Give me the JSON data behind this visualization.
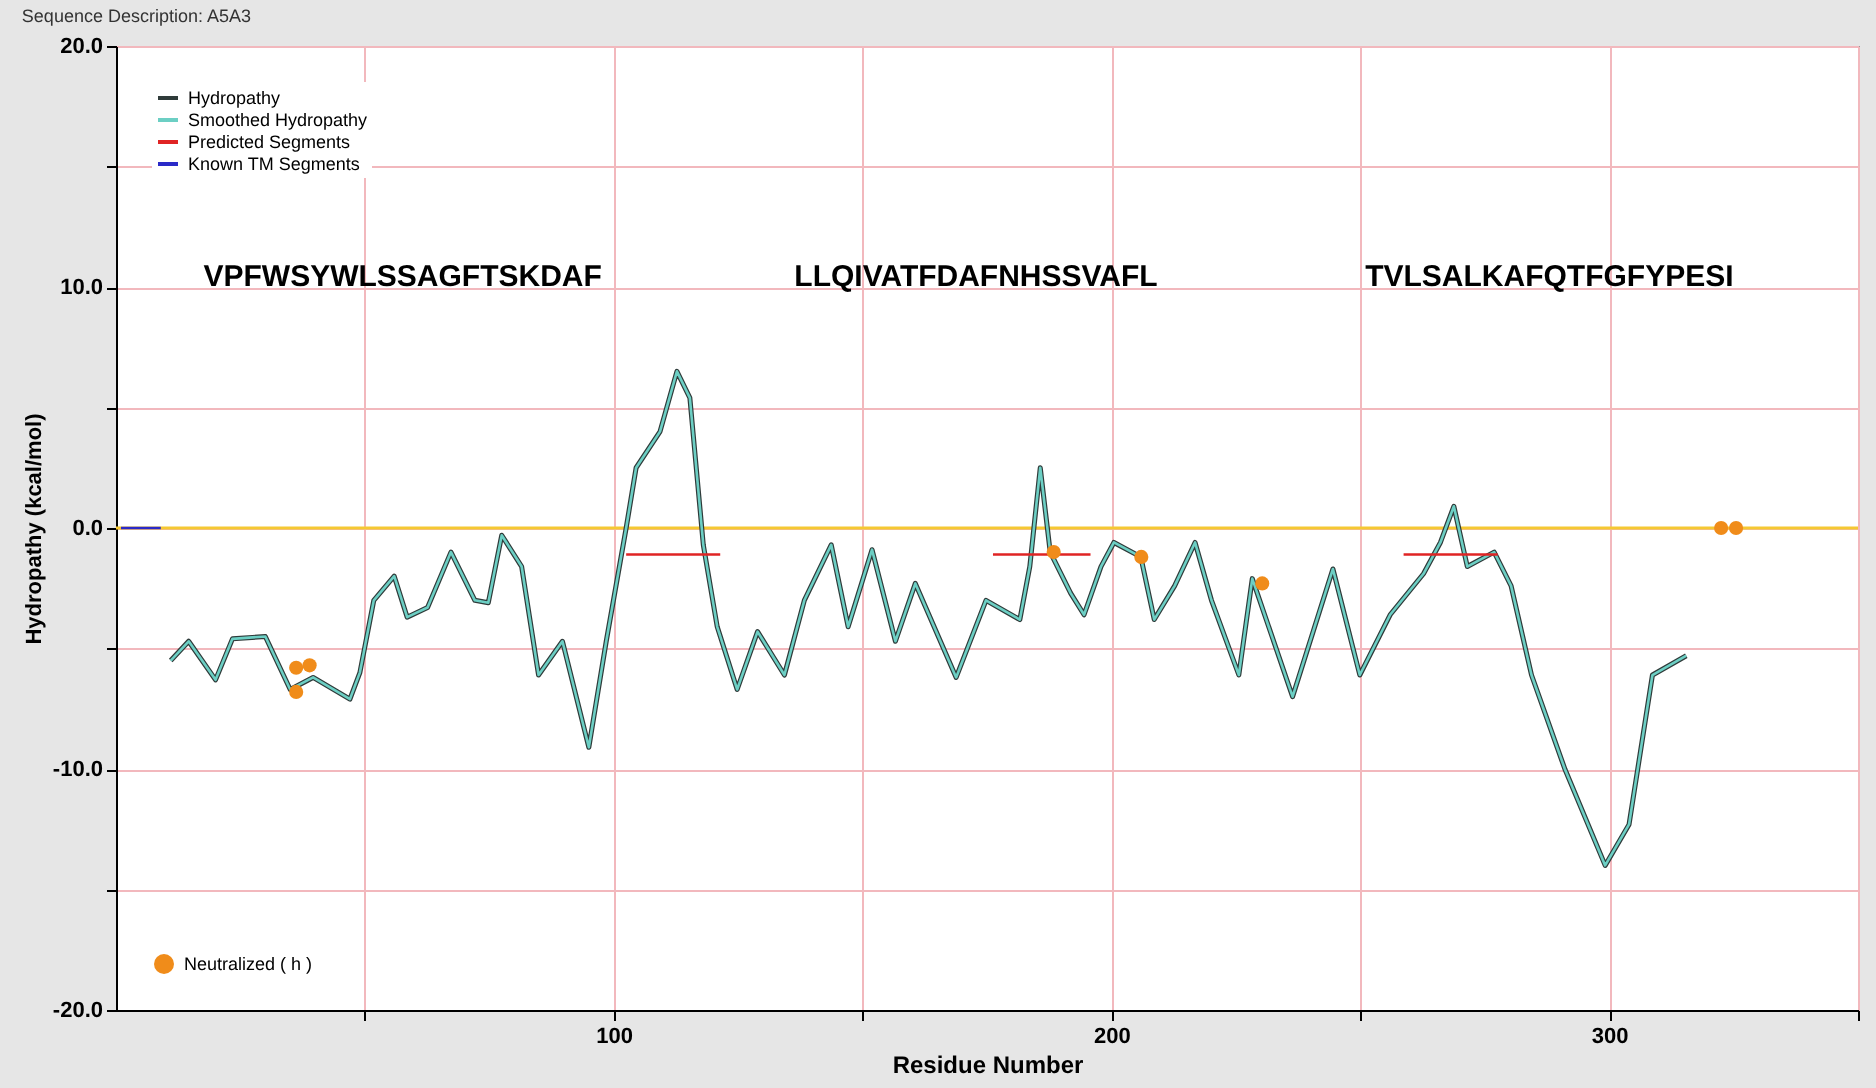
{
  "chart_data": {
    "type": "line",
    "title": "Sequence Description: A5A3",
    "xlabel": "Residue Number",
    "ylabel": "Hydropathy (kcal/mol)",
    "xlim": [
      0,
      350
    ],
    "ylim": [
      -20,
      20
    ],
    "xticks": [
      {
        "value": 50,
        "label": null
      },
      100,
      {
        "value": 150,
        "label": null
      },
      200,
      {
        "value": 250,
        "label": null
      },
      300,
      {
        "value": 350,
        "label": null
      }
    ],
    "yticks": [
      {
        "value": -20,
        "label": "-20.0"
      },
      {
        "value": -15,
        "label": null
      },
      {
        "value": -10,
        "label": "-10.0"
      },
      {
        "value": -5,
        "label": null
      },
      {
        "value": 0,
        "label": "0.0"
      },
      {
        "value": 5,
        "label": null
      },
      {
        "value": 10,
        "label": "10.0"
      },
      {
        "value": 15,
        "label": null
      },
      {
        "value": 20,
        "label": "20.0"
      }
    ],
    "grid": true,
    "legend": "left",
    "line_style": "solid",
    "marker": "none",
    "x": [
      11,
      14.6,
      20,
      23.4,
      30,
      35,
      39.6,
      47,
      49,
      51.8,
      55.9,
      58.5,
      62.6,
      67.3,
      72.1,
      74.8,
      77.5,
      81.5,
      84.9,
      89.7,
      95,
      98.5,
      102.5,
      104.5,
      109.3,
      112.7,
      115.3,
      118,
      120.8,
      124.8,
      128.9,
      134.3,
      138.3,
      143.7,
      147.1,
      151.9,
      156.6,
      160.6,
      168.8,
      174.8,
      181.6,
      183.6,
      185.7,
      187.7,
      191.8,
      194.5,
      197.9,
      200.5,
      205.9,
      208.6,
      212.7,
      216.8,
      220.1,
      225.6,
      228.3,
      236.4,
      244.5,
      249.9,
      256,
      262.7,
      266.1,
      268.8,
      271.5,
      276.9,
      280.3,
      284.4,
      291.1,
      299.2,
      304,
      308.7,
      315.5
    ],
    "series": [
      {
        "name": "Hydropathy",
        "color": "#2f3b3a",
        "values": [
          -5.5,
          -4.7,
          -6.3,
          -4.6,
          -4.5,
          -6.7,
          -6.2,
          -7.1,
          -6.0,
          -3.0,
          -2.0,
          -3.7,
          -3.3,
          -1.0,
          -3.0,
          -3.1,
          -0.3,
          -1.6,
          -6.1,
          -4.7,
          -9.1,
          -4.7,
          0,
          2.5,
          4.0,
          6.5,
          5.4,
          -0.7,
          -4.1,
          -6.7,
          -4.3,
          -6.1,
          -3.0,
          -0.7,
          -4.1,
          -0.9,
          -4.7,
          -2.3,
          -6.2,
          -3.0,
          -3.8,
          -1.6,
          2.5,
          -1.0,
          -2.7,
          -3.6,
          -1.6,
          -0.6,
          -1.2,
          -3.8,
          -2.4,
          -0.6,
          -3.0,
          -6.1,
          -2.1,
          -7.0,
          -1.7,
          -6.1,
          -3.6,
          -1.9,
          -0.6,
          0.9,
          -1.6,
          -1.0,
          -2.4,
          -6.1,
          -10.0,
          -14.0,
          -12.3,
          -6.1,
          -5.3
        ]
      },
      {
        "name": "Smoothed Hydropathy",
        "color": "#6ccfc4",
        "values": [
          -5.5,
          -4.7,
          -6.3,
          -4.6,
          -4.5,
          -6.7,
          -6.2,
          -7.1,
          -6.0,
          -3.0,
          -2.0,
          -3.7,
          -3.3,
          -1.0,
          -3.0,
          -3.1,
          -0.3,
          -1.6,
          -6.1,
          -4.7,
          -9.1,
          -4.7,
          0,
          2.5,
          4.0,
          6.5,
          5.4,
          -0.7,
          -4.1,
          -6.7,
          -4.3,
          -6.1,
          -3.0,
          -0.7,
          -4.1,
          -0.9,
          -4.7,
          -2.3,
          -6.2,
          -3.0,
          -3.8,
          -1.6,
          2.5,
          -1.0,
          -2.7,
          -3.6,
          -1.6,
          -0.6,
          -1.2,
          -3.8,
          -2.4,
          -0.6,
          -3.0,
          -6.1,
          -2.1,
          -7.0,
          -1.7,
          -6.1,
          -3.6,
          -1.9,
          -0.6,
          0.9,
          -1.6,
          -1.0,
          -2.4,
          -6.1,
          -10.0,
          -14.0,
          -12.3,
          -6.1,
          -5.3
        ]
      },
      {
        "name": "Predicted Segments",
        "color": "#e02424",
        "x": [
          102.5,
          121.4,
          150,
          176.2,
          195.8,
          230,
          258.7,
          277.6
        ],
        "values": [
          -1.1,
          -1.1,
          null,
          -1.1,
          -1.1,
          null,
          -1.1,
          -1.1
        ]
      },
      {
        "name": "Known TM Segments",
        "color": "#2a2ac8",
        "x": [
          1,
          9
        ],
        "values": [
          0,
          0
        ]
      },
      {
        "name": "Neutralized ( h )",
        "type": "scatter",
        "marker": "circle",
        "color": "#f08c1a",
        "x": [
          36.2,
          38.9,
          36.2,
          188.4,
          206,
          230.3,
          322.5,
          325.5
        ],
        "values": [
          -5.8,
          -5.7,
          -6.8,
          -1.0,
          -1.2,
          -2.3,
          0,
          0
        ]
      }
    ],
    "ref_lines": [
      {
        "axis": "y",
        "value": 0,
        "color": "#f5c832"
      }
    ],
    "annotations": [
      "VPFWSYWLSSAGFTSKDAF",
      "LLQIVATFDAFNHSSVAFL",
      "TVLSALKAFQTFGFYPESI"
    ]
  }
}
